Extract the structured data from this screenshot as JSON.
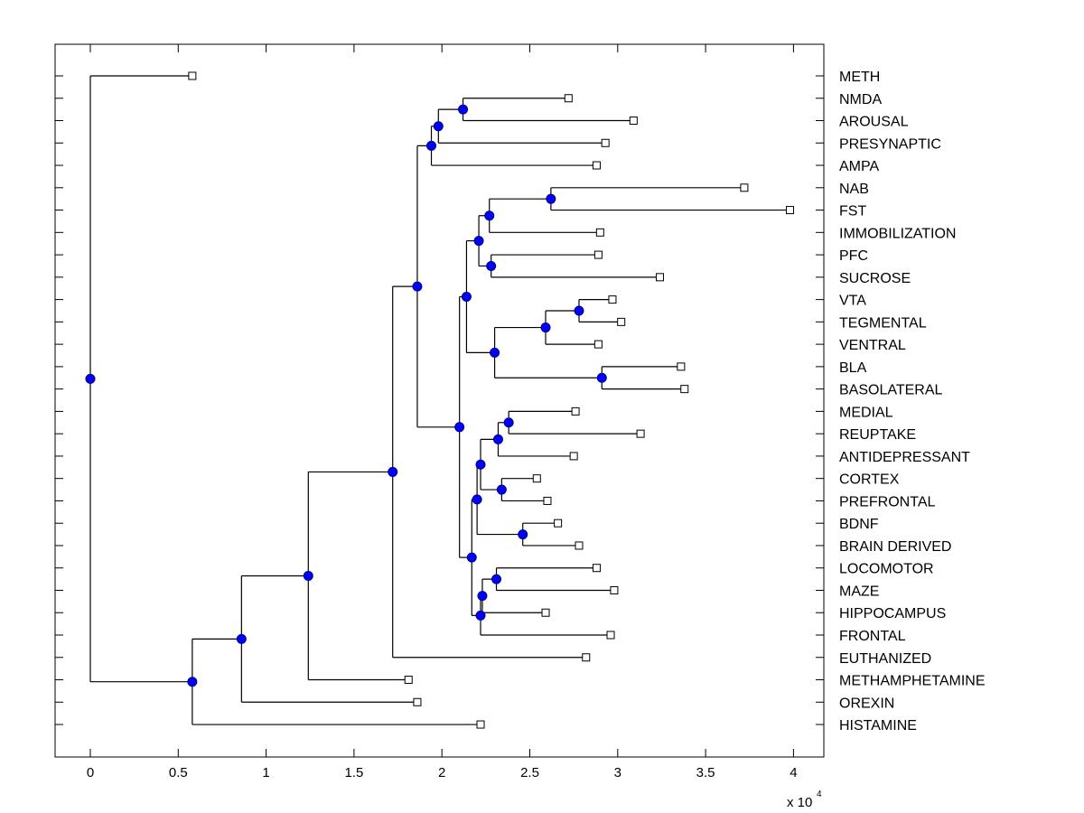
{
  "chart_data": {
    "type": "dendrogram",
    "title": "",
    "xlabel": "",
    "x_multiplier_label": "x 10",
    "x_multiplier_exponent": "4",
    "xlim": [
      -0.2,
      4.18
    ],
    "xticks": [
      0,
      0.5,
      1,
      1.5,
      2,
      2.5,
      3,
      3.5,
      4
    ],
    "xtick_labels": [
      "0",
      "0.5",
      "1",
      "1.5",
      "2",
      "2.5",
      "3",
      "3.5",
      "4"
    ],
    "leaf_order": [
      "METH",
      "NMDA",
      "AROUSAL",
      "PRESYNAPTIC",
      "AMPA",
      "NAB",
      "FST",
      "IMMOBILIZATION",
      "PFC",
      "SUCROSE",
      "VTA",
      "TEGMENTAL",
      "VENTRAL",
      "BLA",
      "BASOLATERAL",
      "MEDIAL",
      "REUPTAKE",
      "ANTIDEPRESSANT",
      "CORTEX",
      "PREFRONTAL",
      "BDNF",
      "BRAIN DERIVED",
      "LOCOMOTOR",
      "MAZE",
      "HIPPOCAMPUS",
      "FRONTAL",
      "EUTHANIZED",
      "METHAMPHETAMINE",
      "OREXIN",
      "HISTAMINE"
    ],
    "leaves": {
      "METH": 0.58,
      "NMDA": 2.72,
      "AROUSAL": 3.09,
      "PRESYNAPTIC": 2.93,
      "AMPA": 2.88,
      "NAB": 3.72,
      "FST": 3.98,
      "IMMOBILIZATION": 2.9,
      "PFC": 2.89,
      "SUCROSE": 3.24,
      "VTA": 2.97,
      "TEGMENTAL": 3.02,
      "VENTRAL": 2.89,
      "BLA": 3.36,
      "BASOLATERAL": 3.38,
      "MEDIAL": 2.76,
      "REUPTAKE": 3.13,
      "ANTIDEPRESSANT": 2.75,
      "CORTEX": 2.54,
      "PREFRONTAL": 2.6,
      "BDNF": 2.66,
      "BRAIN DERIVED": 2.78,
      "LOCOMOTOR": 2.88,
      "MAZE": 2.98,
      "HIPPOCAMPUS": 2.59,
      "FRONTAL": 2.96,
      "EUTHANIZED": 2.82,
      "METHAMPHETAMINE": 1.81,
      "OREXIN": 1.86,
      "HISTAMINE": 2.22
    },
    "nodes": [
      {
        "id": "root",
        "x": 0.0,
        "children": [
          "METH",
          "A"
        ]
      },
      {
        "id": "A",
        "x": 0.58,
        "children": [
          "B",
          "HISTAMINE"
        ]
      },
      {
        "id": "B",
        "x": 0.86,
        "children": [
          "C",
          "OREXIN"
        ]
      },
      {
        "id": "C",
        "x": 1.24,
        "children": [
          "D",
          "METHAMPHETAMINE"
        ]
      },
      {
        "id": "D",
        "x": 1.72,
        "children": [
          "E",
          "EUTHANIZED"
        ]
      },
      {
        "id": "E",
        "x": 1.86,
        "children": [
          "F",
          "G"
        ]
      },
      {
        "id": "F",
        "x": 1.94,
        "children": [
          "H",
          "AMPA"
        ]
      },
      {
        "id": "H",
        "x": 1.98,
        "children": [
          "I",
          "PRESYNAPTIC"
        ]
      },
      {
        "id": "I",
        "x": 2.12,
        "children": [
          "NMDA",
          "AROUSAL"
        ]
      },
      {
        "id": "G",
        "x": 2.1,
        "children": [
          "J",
          "K"
        ]
      },
      {
        "id": "J",
        "x": 2.14,
        "children": [
          "L",
          "M"
        ]
      },
      {
        "id": "L",
        "x": 2.21,
        "children": [
          "N",
          "O"
        ]
      },
      {
        "id": "N",
        "x": 2.27,
        "children": [
          "P",
          "IMMOBILIZATION"
        ]
      },
      {
        "id": "P",
        "x": 2.62,
        "children": [
          "NAB",
          "FST"
        ]
      },
      {
        "id": "O",
        "x": 2.28,
        "children": [
          "PFC",
          "SUCROSE"
        ]
      },
      {
        "id": "M",
        "x": 2.3,
        "children": [
          "Q",
          "R"
        ]
      },
      {
        "id": "Q",
        "x": 2.59,
        "children": [
          "S",
          "VENTRAL"
        ]
      },
      {
        "id": "S",
        "x": 2.78,
        "children": [
          "VTA",
          "TEGMENTAL"
        ]
      },
      {
        "id": "R",
        "x": 2.91,
        "children": [
          "BLA",
          "BASOLATERAL"
        ]
      },
      {
        "id": "K",
        "x": 2.17,
        "children": [
          "T",
          "U"
        ]
      },
      {
        "id": "T",
        "x": 2.2,
        "children": [
          "V",
          "W"
        ]
      },
      {
        "id": "V",
        "x": 2.22,
        "children": [
          "X",
          "Y"
        ]
      },
      {
        "id": "X",
        "x": 2.32,
        "children": [
          "Z",
          "ANTIDEPRESSANT"
        ]
      },
      {
        "id": "Z",
        "x": 2.38,
        "children": [
          "MEDIAL",
          "REUPTAKE"
        ]
      },
      {
        "id": "Y",
        "x": 2.34,
        "children": [
          "CORTEX",
          "PREFRONTAL"
        ]
      },
      {
        "id": "W",
        "x": 2.46,
        "children": [
          "BDNF",
          "BRAIN DERIVED"
        ]
      },
      {
        "id": "U",
        "x": 2.22,
        "children": [
          "AA",
          "FRONTAL"
        ]
      },
      {
        "id": "AA",
        "x": 2.23,
        "children": [
          "BB",
          "HIPPOCAMPUS"
        ]
      },
      {
        "id": "BB",
        "x": 2.31,
        "children": [
          "LOCOMOTOR",
          "MAZE"
        ]
      }
    ],
    "colors": {
      "node_fill": "#0000ff",
      "node_stroke": "#000080",
      "line": "#000000",
      "leaf_fill": "#ffffff"
    }
  }
}
